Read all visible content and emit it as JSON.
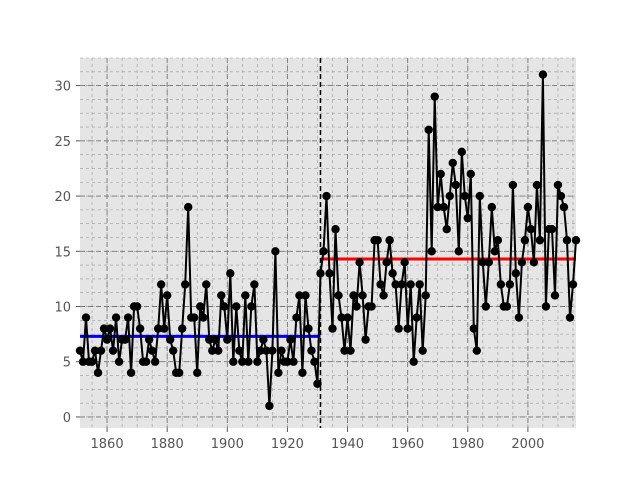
{
  "chart_data": {
    "type": "line",
    "title": "",
    "xlabel": "",
    "ylabel": "",
    "xlim": [
      1851,
      2016
    ],
    "ylim": [
      -1,
      32.5
    ],
    "xticks": [
      1860,
      1880,
      1900,
      1920,
      1940,
      1960,
      1980,
      2000
    ],
    "yticks": [
      0,
      5,
      10,
      15,
      20,
      25,
      30
    ],
    "grid": true,
    "minor_grid": true,
    "legend": "none",
    "series": [
      {
        "style": "line-with-markers",
        "color": "#000000",
        "x": [
          1851,
          1852,
          1853,
          1854,
          1855,
          1856,
          1857,
          1858,
          1859,
          1860,
          1861,
          1862,
          1863,
          1864,
          1865,
          1866,
          1867,
          1868,
          1869,
          1870,
          1871,
          1872,
          1873,
          1874,
          1875,
          1876,
          1877,
          1878,
          1879,
          1880,
          1881,
          1882,
          1883,
          1884,
          1885,
          1886,
          1887,
          1888,
          1889,
          1890,
          1891,
          1892,
          1893,
          1894,
          1895,
          1896,
          1897,
          1898,
          1899,
          1900,
          1901,
          1902,
          1903,
          1904,
          1905,
          1906,
          1907,
          1908,
          1909,
          1910,
          1911,
          1912,
          1913,
          1914,
          1915,
          1916,
          1917,
          1918,
          1919,
          1920,
          1921,
          1922,
          1923,
          1924,
          1925,
          1926,
          1927,
          1928,
          1929,
          1930,
          1931,
          1932,
          1933,
          1934,
          1935,
          1936,
          1937,
          1938,
          1939,
          1940,
          1941,
          1942,
          1943,
          1944,
          1945,
          1946,
          1947,
          1948,
          1949,
          1950,
          1951,
          1952,
          1953,
          1954,
          1955,
          1956,
          1957,
          1958,
          1959,
          1960,
          1961,
          1962,
          1963,
          1964,
          1965,
          1966,
          1967,
          1968,
          1969,
          1970,
          1971,
          1972,
          1973,
          1974,
          1975,
          1976,
          1977,
          1978,
          1979,
          1980,
          1981,
          1982,
          1983,
          1984,
          1985,
          1986,
          1987,
          1988,
          1989,
          1990,
          1991,
          1992,
          1993,
          1994,
          1995,
          1996,
          1997,
          1998,
          1999,
          2000,
          2001,
          2002,
          2003,
          2004,
          2005,
          2006,
          2007,
          2008,
          2009,
          2010,
          2011,
          2012,
          2013,
          2014,
          2015,
          2016
        ],
        "y": [
          6,
          5,
          9,
          5,
          5,
          6,
          4,
          6,
          8,
          7,
          8,
          6,
          9,
          5,
          7,
          7,
          9,
          4,
          10,
          10,
          8,
          5,
          5,
          7,
          6,
          5,
          8,
          12,
          8,
          11,
          7,
          6,
          4,
          4,
          8,
          12,
          19,
          9,
          9,
          4,
          10,
          9,
          12,
          7,
          6,
          7,
          6,
          11,
          10,
          7,
          13,
          5,
          10,
          6,
          5,
          11,
          5,
          10,
          12,
          5,
          6,
          7,
          6,
          1,
          6,
          15,
          4,
          6,
          5,
          5,
          7,
          5,
          9,
          11,
          4,
          11,
          8,
          6,
          5,
          3,
          13,
          15,
          20,
          13,
          8,
          17,
          11,
          9,
          6,
          9,
          6,
          11,
          10,
          14,
          11,
          7,
          10,
          10,
          16,
          16,
          12,
          11,
          14,
          16,
          13,
          12,
          8,
          12,
          14,
          8,
          12,
          5,
          9,
          12,
          6,
          11,
          26,
          15,
          29,
          19,
          22,
          19,
          17,
          20,
          23,
          21,
          15,
          24,
          20,
          18,
          22,
          8,
          6,
          20,
          14,
          10,
          14,
          19,
          15,
          16,
          12,
          10,
          10,
          12,
          21,
          13,
          9,
          14,
          16,
          19,
          17,
          14,
          21,
          16,
          31,
          10,
          17,
          17,
          11,
          21,
          20,
          19,
          16,
          9,
          12,
          16
        ]
      },
      {
        "style": "horizontal-segment",
        "color": "#0000ff",
        "x": [
          1851,
          1931
        ],
        "y": [
          7.3,
          7.3
        ]
      },
      {
        "style": "horizontal-segment",
        "color": "#ff0000",
        "x": [
          1931,
          2016
        ],
        "y": [
          14.3,
          14.3
        ]
      }
    ],
    "vline": {
      "x": 1931,
      "style": "dashed",
      "color": "#000000"
    }
  }
}
